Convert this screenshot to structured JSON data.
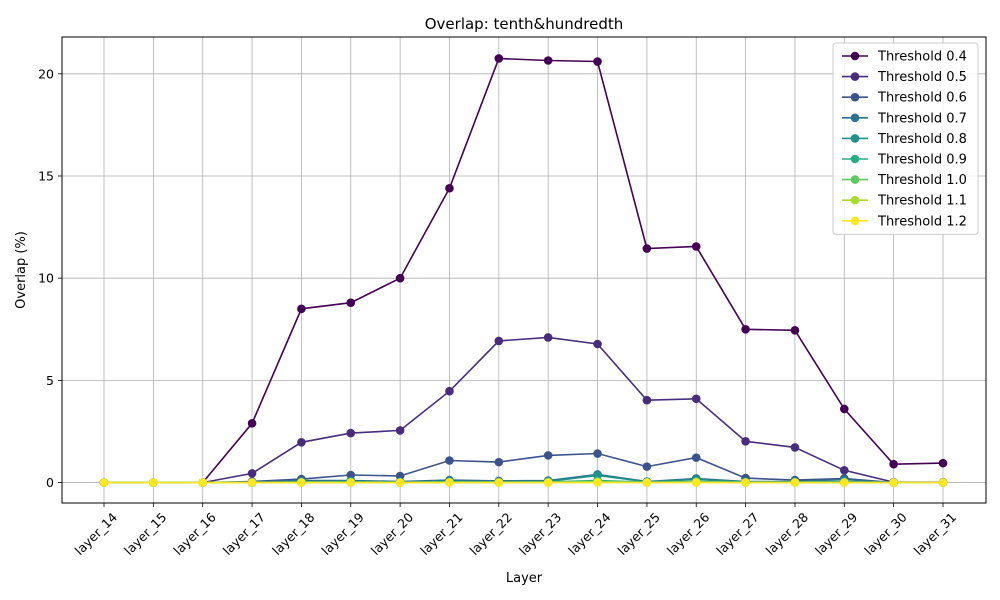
{
  "chart_data": {
    "type": "line",
    "title": "Overlap: tenth&hundredth",
    "xlabel": "Layer",
    "ylabel": "Overlap (%)",
    "ylim": [
      -1,
      21.8
    ],
    "yticks": [
      0,
      5,
      10,
      15,
      20
    ],
    "grid": true,
    "legend_position": "top-right",
    "categories": [
      "layer_14",
      "layer_15",
      "layer_16",
      "layer_17",
      "layer_18",
      "layer_19",
      "layer_20",
      "layer_21",
      "layer_22",
      "layer_23",
      "layer_24",
      "layer_25",
      "layer_26",
      "layer_27",
      "layer_28",
      "layer_29",
      "layer_30",
      "layer_31"
    ],
    "series": [
      {
        "name": "Threshold 0.4",
        "color": "#440154",
        "values": [
          0,
          0,
          0,
          2.9,
          8.5,
          8.8,
          10.0,
          14.4,
          20.75,
          20.65,
          20.6,
          11.45,
          11.55,
          7.5,
          7.45,
          3.6,
          0.9,
          0.95
        ]
      },
      {
        "name": "Threshold 0.5",
        "color": "#472d7b",
        "values": [
          0,
          0,
          0,
          0.45,
          1.97,
          2.42,
          2.55,
          4.47,
          6.93,
          7.1,
          6.78,
          4.03,
          4.1,
          2.02,
          1.72,
          0.6,
          0.02,
          0.02
        ]
      },
      {
        "name": "Threshold 0.6",
        "color": "#3b528b",
        "values": [
          0,
          0,
          0,
          0.05,
          0.17,
          0.37,
          0.32,
          1.08,
          1.0,
          1.33,
          1.42,
          0.78,
          1.22,
          0.22,
          0.12,
          0.2,
          0,
          0
        ]
      },
      {
        "name": "Threshold 0.7",
        "color": "#2c728e",
        "values": [
          0,
          0,
          0,
          0.02,
          0.1,
          0.1,
          0.05,
          0.12,
          0.08,
          0.1,
          0.4,
          0.05,
          0.2,
          0.05,
          0.05,
          0.15,
          0,
          0
        ]
      },
      {
        "name": "Threshold 0.8",
        "color": "#21918c",
        "values": [
          0,
          0,
          0,
          0,
          0.03,
          0.05,
          0.02,
          0.05,
          0.03,
          0.05,
          0.35,
          0.03,
          0.15,
          0.03,
          0.03,
          0.05,
          0,
          0
        ]
      },
      {
        "name": "Threshold 0.9",
        "color": "#28ae80",
        "values": [
          0,
          0,
          0,
          0,
          0.02,
          0.03,
          0.01,
          0.03,
          0.02,
          0.03,
          0.1,
          0.02,
          0.05,
          0.02,
          0.02,
          0.02,
          0,
          0
        ]
      },
      {
        "name": "Threshold 1.0",
        "color": "#5ec962",
        "values": [
          0,
          0,
          0,
          0,
          0.01,
          0.02,
          0,
          0.02,
          0.01,
          0.02,
          0.05,
          0.01,
          0.03,
          0.01,
          0.01,
          0.01,
          0,
          0
        ]
      },
      {
        "name": "Threshold 1.1",
        "color": "#addc30",
        "values": [
          0,
          0,
          0,
          0,
          0,
          0.01,
          0,
          0.01,
          0,
          0.01,
          0.02,
          0,
          0.02,
          0,
          0,
          0,
          0,
          0
        ]
      },
      {
        "name": "Threshold 1.2",
        "color": "#fde725",
        "values": [
          0,
          0,
          0,
          0,
          0,
          0,
          0,
          0,
          0,
          0,
          0,
          0,
          0,
          0,
          0,
          0,
          0,
          0
        ]
      }
    ]
  }
}
